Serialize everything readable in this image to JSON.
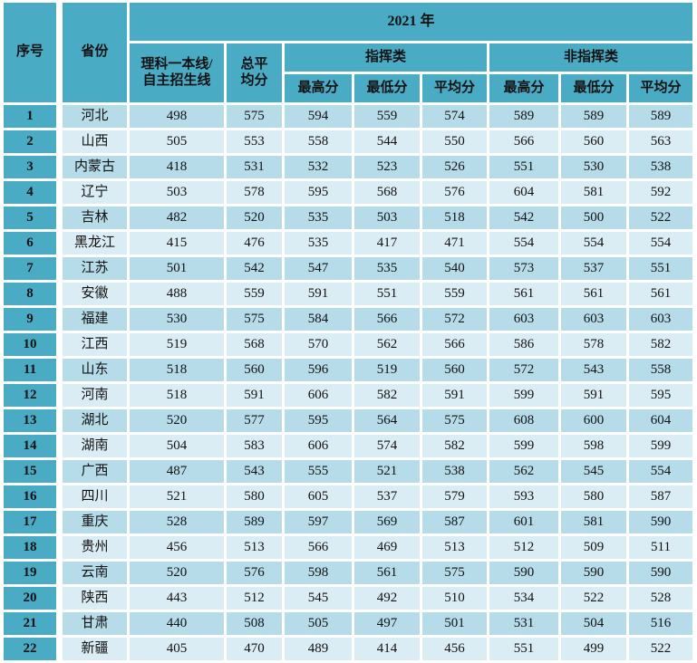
{
  "colors": {
    "teal": "#4aabc5",
    "row_medium": "#b5dce8",
    "row_light": "#dbedf4",
    "gap_white": "#ffffff",
    "text": "#121212"
  },
  "table": {
    "headers": {
      "seq": "序号",
      "province": "省份",
      "year": "2021 年",
      "science_line_1": "理科一本线/",
      "science_line_2": "自主招生线",
      "total_avg_1": "总平",
      "total_avg_2": "均分",
      "command": "指挥类",
      "non_command": "非指挥类",
      "sub": [
        "最高分",
        "最低分",
        "平均分",
        "最高分",
        "最低分",
        "平均分"
      ]
    },
    "rows": [
      [
        "1",
        "河北",
        "498",
        "575",
        "594",
        "559",
        "574",
        "589",
        "589",
        "589"
      ],
      [
        "2",
        "山西",
        "505",
        "553",
        "558",
        "544",
        "550",
        "566",
        "560",
        "563"
      ],
      [
        "3",
        "内蒙古",
        "418",
        "531",
        "532",
        "523",
        "526",
        "551",
        "530",
        "538"
      ],
      [
        "4",
        "辽宁",
        "503",
        "578",
        "595",
        "568",
        "576",
        "604",
        "581",
        "592"
      ],
      [
        "5",
        "吉林",
        "482",
        "520",
        "535",
        "503",
        "518",
        "542",
        "500",
        "522"
      ],
      [
        "6",
        "黑龙江",
        "415",
        "476",
        "535",
        "417",
        "471",
        "554",
        "554",
        "554"
      ],
      [
        "7",
        "江苏",
        "501",
        "542",
        "547",
        "535",
        "540",
        "573",
        "537",
        "551"
      ],
      [
        "8",
        "安徽",
        "488",
        "559",
        "591",
        "551",
        "559",
        "561",
        "561",
        "561"
      ],
      [
        "9",
        "福建",
        "530",
        "575",
        "584",
        "566",
        "572",
        "603",
        "603",
        "603"
      ],
      [
        "10",
        "江西",
        "519",
        "568",
        "570",
        "562",
        "566",
        "586",
        "578",
        "582"
      ],
      [
        "11",
        "山东",
        "518",
        "560",
        "596",
        "519",
        "560",
        "572",
        "543",
        "558"
      ],
      [
        "12",
        "河南",
        "518",
        "591",
        "606",
        "582",
        "591",
        "599",
        "591",
        "595"
      ],
      [
        "13",
        "湖北",
        "520",
        "577",
        "595",
        "564",
        "575",
        "608",
        "600",
        "604"
      ],
      [
        "14",
        "湖南",
        "504",
        "583",
        "606",
        "574",
        "582",
        "599",
        "598",
        "599"
      ],
      [
        "15",
        "广西",
        "487",
        "543",
        "555",
        "521",
        "538",
        "562",
        "545",
        "554"
      ],
      [
        "16",
        "四川",
        "521",
        "580",
        "605",
        "537",
        "579",
        "593",
        "580",
        "587"
      ],
      [
        "17",
        "重庆",
        "528",
        "589",
        "597",
        "569",
        "587",
        "601",
        "581",
        "590"
      ],
      [
        "18",
        "贵州",
        "456",
        "513",
        "566",
        "469",
        "513",
        "512",
        "509",
        "511"
      ],
      [
        "19",
        "云南",
        "520",
        "576",
        "598",
        "561",
        "575",
        "590",
        "590",
        "590"
      ],
      [
        "20",
        "陕西",
        "443",
        "512",
        "545",
        "492",
        "510",
        "534",
        "522",
        "528"
      ],
      [
        "21",
        "甘肃",
        "440",
        "508",
        "505",
        "497",
        "501",
        "531",
        "504",
        "516"
      ],
      [
        "22",
        "新疆",
        "405",
        "470",
        "489",
        "414",
        "456",
        "551",
        "499",
        "522"
      ]
    ]
  }
}
